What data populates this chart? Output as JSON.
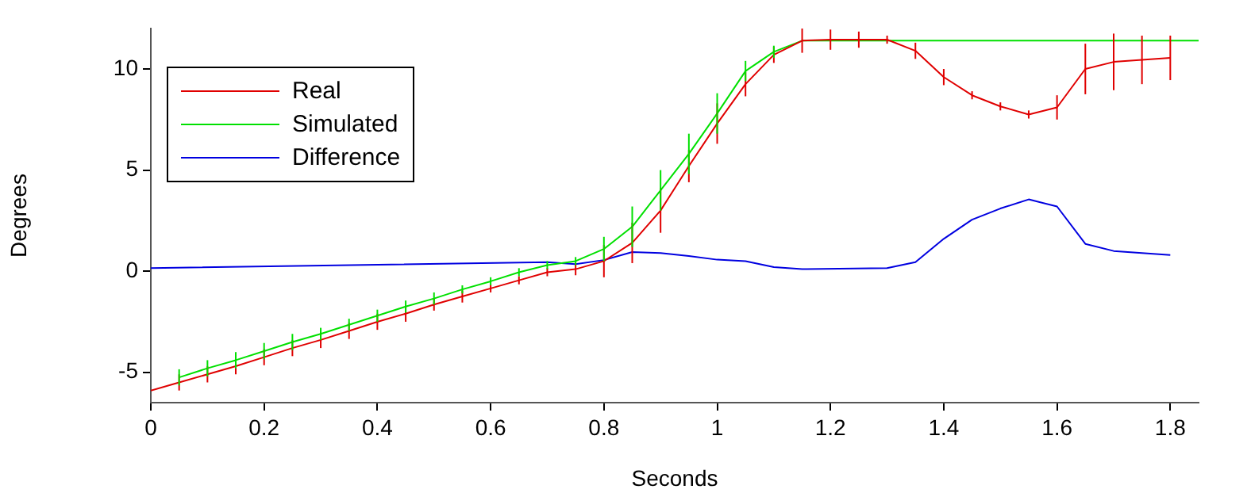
{
  "chart_data": {
    "type": "line",
    "xlabel": "Seconds",
    "ylabel": "Degrees",
    "xlim": [
      0,
      1.85
    ],
    "ylim": [
      -6.5,
      12
    ],
    "xticks": [
      0,
      0.2,
      0.4,
      0.6,
      0.8,
      1,
      1.2,
      1.4,
      1.6,
      1.8
    ],
    "yticks": [
      -5,
      0,
      5,
      10
    ],
    "grid": false,
    "legend": "top left",
    "marker": "none",
    "line_style": "solid",
    "series": [
      {
        "name": "Real",
        "color": "#e00000",
        "x": [
          0,
          0.05,
          0.1,
          0.15,
          0.2,
          0.25,
          0.3,
          0.35,
          0.4,
          0.45,
          0.5,
          0.55,
          0.6,
          0.65,
          0.7,
          0.75,
          0.8,
          0.85,
          0.9,
          0.95,
          1,
          1.05,
          1.1,
          1.15,
          1.2,
          1.25,
          1.3,
          1.35,
          1.4,
          1.45,
          1.5,
          1.55,
          1.6,
          1.65,
          1.7,
          1.75,
          1.8
        ],
        "values": [
          -5.9,
          -5.5,
          -5.1,
          -4.7,
          -4.25,
          -3.8,
          -3.4,
          -2.95,
          -2.5,
          -2.1,
          -1.65,
          -1.25,
          -0.85,
          -0.45,
          -0.05,
          0.1,
          0.5,
          1.4,
          3,
          5.2,
          7.3,
          9.25,
          10.7,
          11.4,
          11.45,
          11.45,
          11.45,
          10.9,
          9.6,
          8.7,
          8.15,
          7.75,
          8.1,
          10,
          10.35,
          10.45,
          10.55
        ],
        "errors": [
          null,
          0.4,
          0.4,
          0.4,
          0.4,
          0.4,
          0.4,
          0.4,
          0.4,
          0.4,
          0.3,
          0.3,
          0.2,
          0.2,
          0.2,
          0.3,
          0.8,
          1,
          1.1,
          0.8,
          1,
          0.6,
          0.4,
          0.6,
          0.5,
          0.4,
          0.2,
          0.4,
          0.4,
          0.2,
          0.2,
          0.2,
          0.6,
          1.25,
          1.4,
          1.2,
          1.1
        ]
      },
      {
        "name": "Simulated",
        "color": "#00e000",
        "x": [
          0.05,
          0.1,
          0.15,
          0.2,
          0.25,
          0.3,
          0.35,
          0.4,
          0.45,
          0.5,
          0.55,
          0.6,
          0.65,
          0.7,
          0.75,
          0.8,
          0.85,
          0.9,
          0.95,
          1,
          1.05,
          1.1,
          1.15,
          1.2,
          1.25,
          1.3,
          1.35,
          1.4,
          1.45,
          1.5,
          1.55,
          1.6,
          1.65,
          1.7,
          1.75,
          1.8,
          1.85
        ],
        "values": [
          -5.25,
          -4.8,
          -4.4,
          -3.95,
          -3.5,
          -3.1,
          -2.65,
          -2.2,
          -1.75,
          -1.35,
          -0.9,
          -0.5,
          -0.05,
          0.3,
          0.5,
          1.1,
          2.2,
          4,
          5.8,
          7.8,
          9.9,
          10.85,
          11.4,
          11.4,
          11.4,
          11.4,
          11.4,
          11.4,
          11.4,
          11.4,
          11.4,
          11.4,
          11.4,
          11.4,
          11.4,
          11.4,
          11.4
        ],
        "errors": [
          0.4,
          0.4,
          0.4,
          0.4,
          0.4,
          0.3,
          0.3,
          0.3,
          0.3,
          0.3,
          0.2,
          0.2,
          0.2,
          0.2,
          0.2,
          0.6,
          1,
          1,
          1,
          1,
          0.5,
          0.3,
          null,
          null,
          null,
          null,
          null,
          null,
          null,
          null,
          null,
          null,
          null,
          null,
          null,
          null,
          null
        ]
      },
      {
        "name": "Difference",
        "color": "#0000e0",
        "x": [
          0,
          0.7,
          0.75,
          0.8,
          0.85,
          0.9,
          0.95,
          1,
          1.05,
          1.1,
          1.15,
          1.3,
          1.35,
          1.4,
          1.45,
          1.5,
          1.55,
          1.6,
          1.65,
          1.7,
          1.8
        ],
        "values": [
          0.15,
          0.45,
          0.35,
          0.55,
          0.95,
          0.9,
          0.75,
          0.57,
          0.5,
          0.2,
          0.1,
          0.15,
          0.45,
          1.6,
          2.55,
          3.1,
          3.55,
          3.2,
          1.35,
          1,
          0.8
        ]
      }
    ]
  }
}
